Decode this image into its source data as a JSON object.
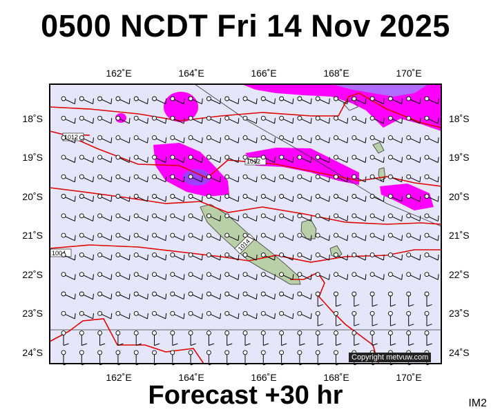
{
  "title": "0500 NCDT Fri 14 Nov 2025",
  "footer": "Forecast +30 hr",
  "image_code": "IM2",
  "copyright": "Copyright metvuw.com",
  "axes": {
    "lon_labels": [
      "162˚E",
      "164˚E",
      "166˚E",
      "168˚E",
      "170˚E"
    ],
    "lat_labels": [
      "18˚S",
      "19˚S",
      "20˚S",
      "21˚S",
      "22˚S",
      "23˚S",
      "24˚S"
    ]
  },
  "isobar_labels": [
    "1012",
    "1012",
    "1014",
    "1004"
  ],
  "colors": {
    "sea": "#e6e6fa",
    "rain_light": "#ff00ff",
    "rain_heavy": "#9a3cff",
    "isobar": "#e00000",
    "land": "#b9cfa8"
  }
}
